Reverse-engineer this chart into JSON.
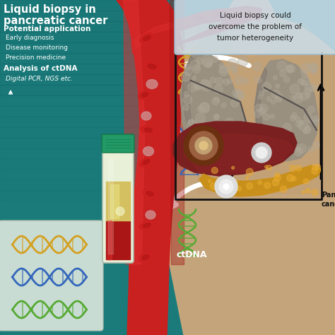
{
  "bg_color": "#1b7b7b",
  "bg_gradient_top": "#0e5c5c",
  "title_line1": "Liquid biopsy in",
  "title_line2": "pancreatic cancer",
  "section1_title": "Potential application",
  "section1_items": [
    "Early diagnosis",
    "Disease monitoring",
    "Precision medicine"
  ],
  "section2_title": "Analysis of ctDNA",
  "section2_item": "Digital PCR, NGS etc.",
  "callout_text": "Liquid biopsy could\novercome the problem of\ntumor heterogeneity",
  "label_ctdna": "ctDNA",
  "label_pancreatic_line1": "Pancreatic",
  "label_pancreatic_line2": "cancer",
  "text_white": "#ffffff",
  "text_dark": "#1a1a1a",
  "vessel_red": "#c92020",
  "vessel_red_light": "#e03030",
  "vessel_dark": "#a01515",
  "rbc_red": "#cc2020",
  "rbc_pale": "#d4a0a0",
  "dna_orange": "#d4a020",
  "dna_blue": "#3366bb",
  "dna_green": "#55aa33",
  "callout_bg": "#ccdde8",
  "callout_border": "#99bbcc",
  "lung_base": "#9a9080",
  "lung_dark": "#7a7068",
  "lung_light": "#b0a898",
  "liver_base": "#7a2020",
  "liver_dark": "#5a1010",
  "pancreas_color": "#c8901a",
  "skin_color": "#d4a87a",
  "skin_dark": "#c09060",
  "tube_cap": "#229966",
  "tube_cap_dark": "#117744",
  "tube_body": "#e8f0d8",
  "tube_serum": "#d4c060",
  "tube_blood": "#aa1515",
  "tube_clot": "#cc2020",
  "dna_box_bg": "#dde8dd",
  "arrow_white": "#ffffff",
  "arrow_black": "#111111"
}
